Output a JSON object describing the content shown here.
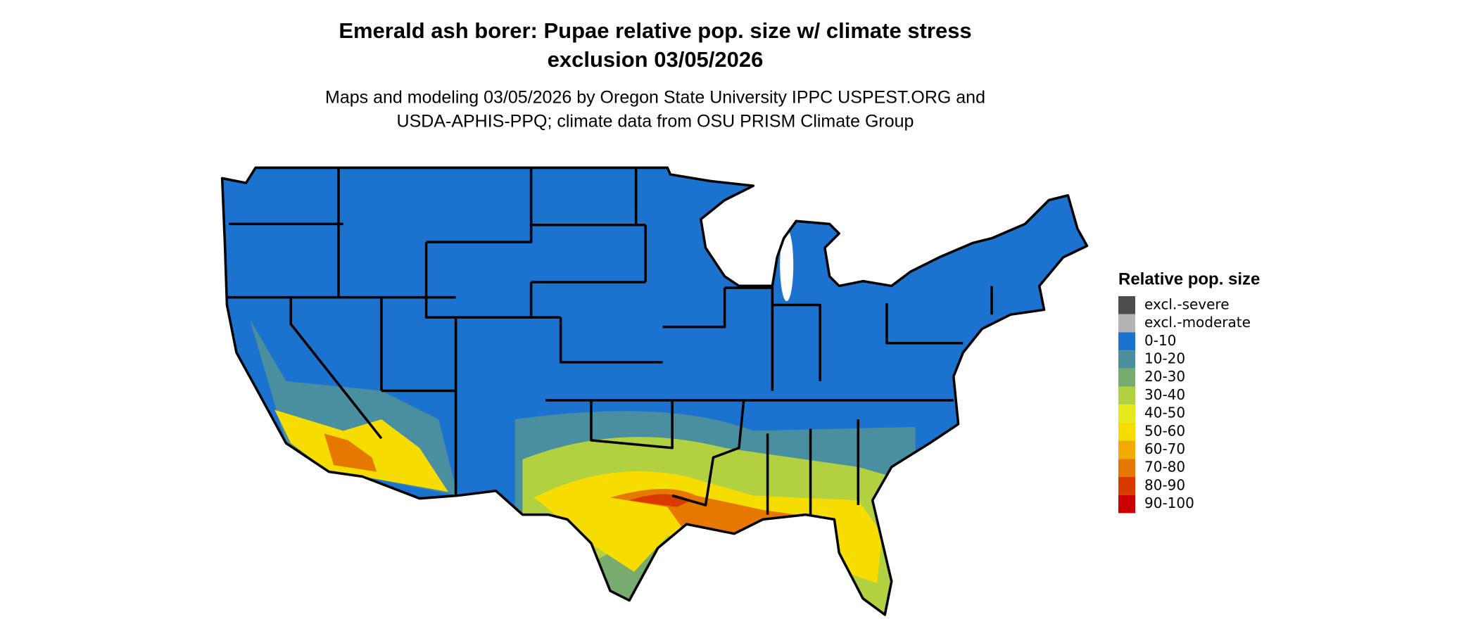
{
  "title_lines": [
    "Emerald ash borer: Pupae relative pop. size w/ climate stress",
    "exclusion 03/05/2026"
  ],
  "subtitle_lines": [
    "Maps and modeling 03/05/2026 by Oregon State University IPPC USPEST.ORG and",
    "USDA-APHIS-PPQ; climate data from OSU PRISM Climate Group"
  ],
  "legend": {
    "title": "Relative pop. size",
    "items": [
      {
        "label": "excl.-severe",
        "color": "#4d4d4d"
      },
      {
        "label": "excl.-moderate",
        "color": "#b3b3b3"
      },
      {
        "label": "0-10",
        "color": "#1b73cf"
      },
      {
        "label": "10-20",
        "color": "#4a8fa0"
      },
      {
        "label": "20-30",
        "color": "#78ab6e"
      },
      {
        "label": "30-40",
        "color": "#b2d140"
      },
      {
        "label": "40-50",
        "color": "#e6ea1c"
      },
      {
        "label": "50-60",
        "color": "#f7dc00"
      },
      {
        "label": "60-70",
        "color": "#f0aa00"
      },
      {
        "label": "70-80",
        "color": "#e67800"
      },
      {
        "label": "80-90",
        "color": "#d83a00"
      },
      {
        "label": "90-100",
        "color": "#cc0000"
      }
    ]
  }
}
